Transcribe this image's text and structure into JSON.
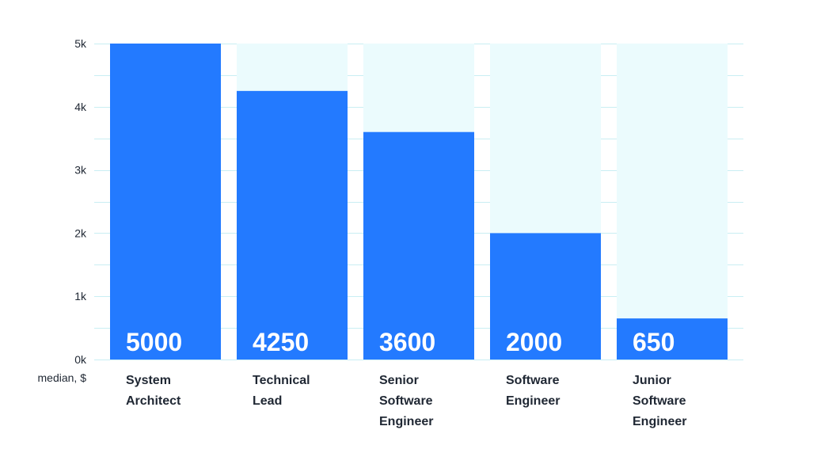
{
  "chart_data": {
    "type": "bar",
    "categories": [
      [
        "System",
        "Architect"
      ],
      [
        "Technical",
        "Lead"
      ],
      [
        "Senior",
        "Software",
        "Engineer"
      ],
      [
        "Software",
        "Engineer"
      ],
      [
        "Junior",
        "Software",
        "Engineer"
      ]
    ],
    "values": [
      5000,
      4250,
      3600,
      2000,
      650
    ],
    "value_labels": [
      "5000",
      "4250",
      "3600",
      "2000",
      "650"
    ],
    "ylabel": "median, $",
    "ylim": [
      0,
      5000
    ],
    "yticks": [
      0,
      1000,
      2000,
      3000,
      4000,
      5000
    ],
    "ytick_labels": [
      "0k",
      "1k",
      "2k",
      "3k",
      "4k",
      "5k"
    ],
    "grid": true,
    "colors": {
      "bar": "#237aff",
      "bar_track": "#ebfbfd",
      "grid": "#c9eef3",
      "text": "#1f2733",
      "value_text": "#ffffff"
    }
  }
}
